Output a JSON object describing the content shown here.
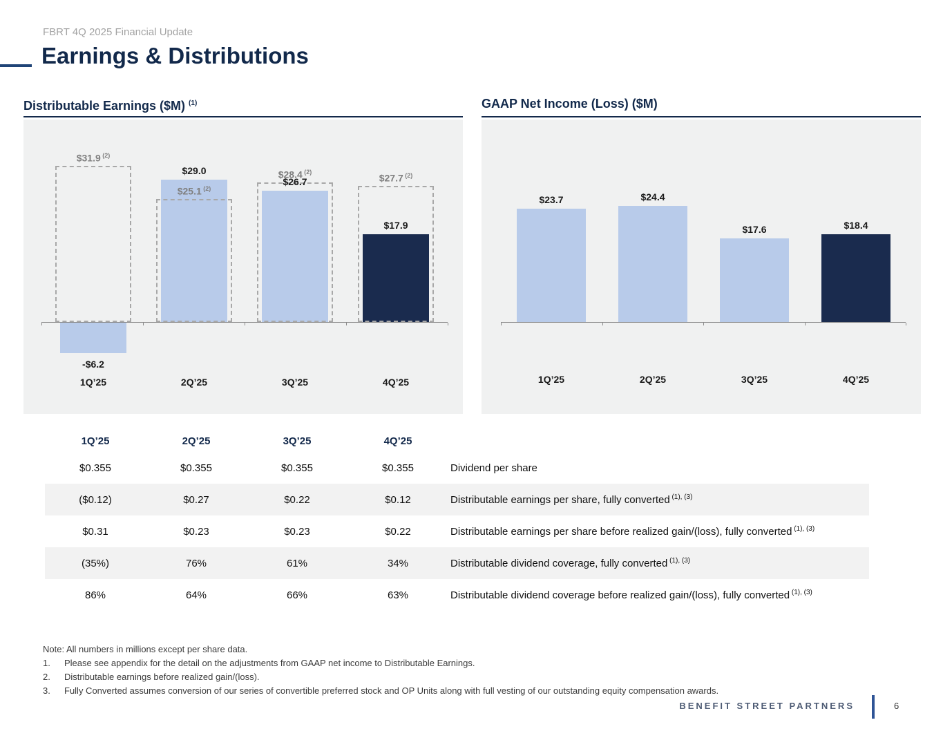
{
  "slide": {
    "eyebrow": "FBRT 4Q 2025 Financial Update",
    "title": "Earnings & Distributions",
    "footer_brand": "BENEFIT STREET PARTNERS",
    "page_number": "6"
  },
  "colors": {
    "navy": "#13294b",
    "accent_line": "#1f4477",
    "bar_light": "#b8cbea",
    "bar_dark": "#1a2b4e",
    "chart_bg": "#f0f1f1",
    "dashed_outline": "#a8a8a8",
    "row_shade": "#f2f2f2"
  },
  "chart_data": [
    {
      "type": "bar",
      "title": "Distributable Earnings ($M)",
      "title_sup": "(1)",
      "categories": [
        "1Q’25",
        "2Q’25",
        "3Q’25",
        "4Q’25"
      ],
      "series": [
        {
          "name": "Distributable Earnings",
          "values": [
            -6.2,
            29.0,
            26.7,
            17.9
          ],
          "labels": [
            "-$6.2",
            "$29.0",
            "$26.7",
            "$17.9"
          ]
        },
        {
          "name": "Distributable earnings before realized gain/(loss)",
          "style": "dashed-outline",
          "sup": "(2)",
          "values": [
            31.9,
            25.1,
            28.4,
            27.7
          ],
          "labels": [
            "$31.9",
            "$25.1",
            "$28.4",
            "$27.7"
          ]
        }
      ],
      "ylim": [
        -10,
        36
      ],
      "gridlines": false,
      "legend": "none"
    },
    {
      "type": "bar",
      "title": "GAAP Net Income (Loss) ($M)",
      "title_sup": "",
      "categories": [
        "1Q’25",
        "2Q’25",
        "3Q’25",
        "4Q’25"
      ],
      "series": [
        {
          "name": "GAAP Net Income (Loss)",
          "values": [
            23.7,
            24.4,
            17.6,
            18.4
          ],
          "labels": [
            "$23.7",
            "$24.4",
            "$17.6",
            "$18.4"
          ]
        }
      ],
      "ylim": [
        0,
        30
      ],
      "gridlines": false,
      "legend": "none"
    }
  ],
  "table": {
    "columns": [
      "1Q’25",
      "2Q’25",
      "3Q’25",
      "4Q’25"
    ],
    "rows": [
      {
        "values": [
          "$0.355",
          "$0.355",
          "$0.355",
          "$0.355"
        ],
        "label": "Dividend per share",
        "sup": "",
        "shaded": false
      },
      {
        "values": [
          "($0.12)",
          "$0.27",
          "$0.22",
          "$0.12"
        ],
        "label": "Distributable earnings per share, fully converted",
        "sup": "(1), (3)",
        "shaded": true
      },
      {
        "values": [
          "$0.31",
          "$0.23",
          "$0.23",
          "$0.22"
        ],
        "label": "Distributable earnings per share before realized gain/(loss), fully converted",
        "sup": "(1), (3)",
        "shaded": false
      },
      {
        "values": [
          "(35%)",
          "76%",
          "61%",
          "34%"
        ],
        "label": "Distributable dividend coverage, fully converted",
        "sup": "(1), (3)",
        "shaded": true
      },
      {
        "values": [
          "86%",
          "64%",
          "66%",
          "63%"
        ],
        "label": "Distributable dividend coverage before realized gain/(loss), fully converted",
        "sup": "(1), (3)",
        "shaded": false
      }
    ]
  },
  "notes": {
    "intro": "Note: All numbers in millions except per share data.",
    "items": [
      {
        "num": "1.",
        "text": "Please see appendix for the detail on the adjustments from GAAP net income to Distributable Earnings."
      },
      {
        "num": "2.",
        "text": "Distributable earnings before realized gain/(loss)."
      },
      {
        "num": "3.",
        "text": "Fully Converted assumes conversion of our series of convertible preferred stock and OP Units along with full vesting of our outstanding equity compensation awards."
      }
    ]
  }
}
